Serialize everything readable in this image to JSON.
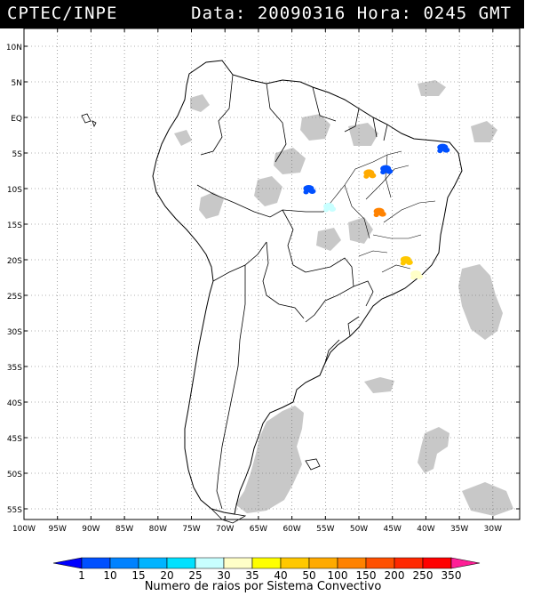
{
  "header": {
    "source": "CPTEC/INPE",
    "data_label": "Data:",
    "date": "20090316",
    "hora_label": "Hora:",
    "time": "0245",
    "tz": "GMT"
  },
  "axes": {
    "lat_labels": [
      "10N",
      "5N",
      "EQ",
      "5S",
      "10S",
      "15S",
      "20S",
      "25S",
      "30S",
      "35S",
      "40S",
      "45S",
      "50S",
      "55S"
    ],
    "lat_values": [
      10,
      5,
      0,
      -5,
      -10,
      -15,
      -20,
      -25,
      -30,
      -35,
      -40,
      -45,
      -50,
      -55
    ],
    "lon_labels": [
      "100W",
      "95W",
      "90W",
      "85W",
      "80W",
      "75W",
      "70W",
      "65W",
      "60W",
      "55W",
      "50W",
      "45W",
      "40W",
      "35W",
      "30W"
    ],
    "lon_values": [
      -100,
      -95,
      -90,
      -85,
      -80,
      -75,
      -70,
      -65,
      -60,
      -55,
      -50,
      -45,
      -40,
      -35,
      -30
    ],
    "lat_range": [
      -56.5,
      12.5
    ],
    "lon_range": [
      -100,
      -26
    ]
  },
  "legend": {
    "ticks": [
      "1",
      "10",
      "15",
      "20",
      "25",
      "30",
      "35",
      "40",
      "50",
      "100",
      "150",
      "200",
      "250",
      "350"
    ],
    "colors": [
      "#0000ff",
      "#0050ff",
      "#0082ff",
      "#00b4ff",
      "#00e1ff",
      "#c8ffff",
      "#ffffc8",
      "#ffff00",
      "#ffc800",
      "#ffaa00",
      "#ff8200",
      "#ff5000",
      "#ff2800",
      "#ff0000",
      "#ff1e96"
    ],
    "caption": "Numero de raios por Sistema Convectivo"
  },
  "map": {
    "gridlines": true,
    "cloud_color": "#c8c8c8",
    "storm_cells": [
      {
        "lon": -37.5,
        "lat": -4.2,
        "color": "#0050ff"
      },
      {
        "lon": -46.0,
        "lat": -7.2,
        "color": "#0050ff"
      },
      {
        "lon": -57.5,
        "lat": -10.0,
        "color": "#0050ff"
      },
      {
        "lon": -48.5,
        "lat": -7.8,
        "color": "#ffaa00"
      },
      {
        "lon": -54.5,
        "lat": -12.5,
        "color": "#c8ffff"
      },
      {
        "lon": -47.0,
        "lat": -13.2,
        "color": "#ff8200"
      },
      {
        "lon": -43.0,
        "lat": -20.0,
        "color": "#ffc800"
      },
      {
        "lon": -41.5,
        "lat": -22.0,
        "color": "#ffffc8"
      }
    ]
  }
}
